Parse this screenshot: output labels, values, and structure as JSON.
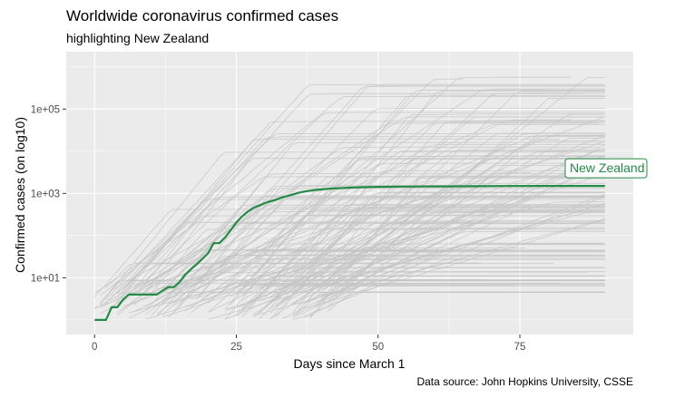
{
  "chart_data": {
    "type": "line",
    "title": "Worldwide coronavirus confirmed cases",
    "subtitle": "highlighting New Zealand",
    "caption": "Data source: John Hopkins University, CSSE",
    "xlabel": "Days since March 1",
    "ylabel": "Confirmed cases (on log10)",
    "x_scale": "linear",
    "y_scale": "log10",
    "xlim": [
      -5,
      95
    ],
    "ylim": [
      0.45,
      2300000
    ],
    "x_ticks": [
      0,
      25,
      50,
      75
    ],
    "x_tick_labels": [
      "0",
      "25",
      "50",
      "75"
    ],
    "y_ticks": [
      10,
      1000,
      100000
    ],
    "y_tick_labels": [
      "1e+01",
      "1e+03",
      "1e+05"
    ],
    "grid": true,
    "legend": "none",
    "colors": {
      "highlight": "#238b45",
      "background_series": "#c4c4c4",
      "panel": "#ebebeb",
      "grid": "#ffffff"
    },
    "series": [
      {
        "name": "New Zealand",
        "highlighted": true,
        "points": [
          [
            0,
            1
          ],
          [
            1,
            1
          ],
          [
            2,
            1
          ],
          [
            3,
            2
          ],
          [
            4,
            2
          ],
          [
            5,
            3
          ],
          [
            6,
            4
          ],
          [
            7,
            4
          ],
          [
            8,
            4
          ],
          [
            9,
            4
          ],
          [
            10,
            4
          ],
          [
            11,
            4
          ],
          [
            12,
            5
          ],
          [
            13,
            6
          ],
          [
            14,
            6
          ],
          [
            15,
            8
          ],
          [
            16,
            12
          ],
          [
            17,
            16
          ],
          [
            18,
            21
          ],
          [
            19,
            28
          ],
          [
            20,
            38
          ],
          [
            21,
            66
          ],
          [
            22,
            66
          ],
          [
            23,
            90
          ],
          [
            24,
            135
          ],
          [
            25,
            205
          ],
          [
            26,
            283
          ],
          [
            27,
            368
          ],
          [
            28,
            451
          ],
          [
            29,
            514
          ],
          [
            30,
            589
          ],
          [
            31,
            647
          ],
          [
            32,
            708
          ],
          [
            33,
            797
          ],
          [
            34,
            868
          ],
          [
            35,
            950
          ],
          [
            36,
            1039
          ],
          [
            37,
            1106
          ],
          [
            38,
            1160
          ],
          [
            39,
            1210
          ],
          [
            40,
            1239
          ],
          [
            41,
            1283
          ],
          [
            42,
            1312
          ],
          [
            43,
            1330
          ],
          [
            44,
            1349
          ],
          [
            45,
            1366
          ],
          [
            46,
            1386
          ],
          [
            47,
            1401
          ],
          [
            48,
            1409
          ],
          [
            49,
            1422
          ],
          [
            50,
            1431
          ],
          [
            52,
            1440
          ],
          [
            54,
            1451
          ],
          [
            56,
            1456
          ],
          [
            58,
            1461
          ],
          [
            60,
            1469
          ],
          [
            62,
            1470
          ],
          [
            64,
            1474
          ],
          [
            66,
            1476
          ],
          [
            68,
            1479
          ],
          [
            70,
            1487
          ],
          [
            72,
            1497
          ],
          [
            74,
            1498
          ],
          [
            76,
            1499
          ],
          [
            78,
            1503
          ],
          [
            80,
            1504
          ],
          [
            82,
            1504
          ],
          [
            84,
            1504
          ],
          [
            86,
            1504
          ],
          [
            88,
            1504
          ],
          [
            90,
            1504
          ]
        ]
      }
    ]
  }
}
